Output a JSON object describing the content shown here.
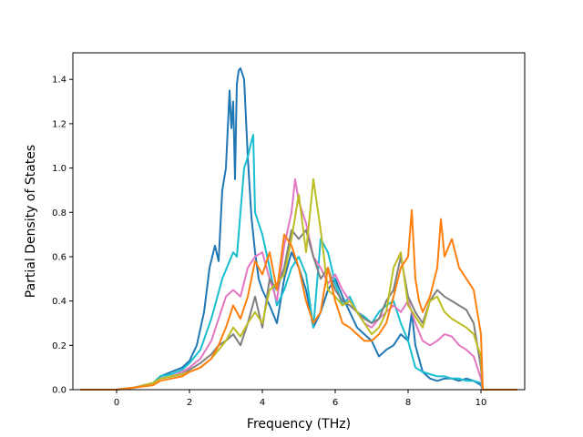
{
  "chart_data": {
    "type": "line",
    "title": "",
    "xlabel": "Frequency (THz)",
    "ylabel": "Partial Density of States",
    "xlim": [
      -1.2,
      11.2
    ],
    "ylim": [
      0,
      1.52
    ],
    "xticks": [
      0,
      2,
      4,
      6,
      8,
      10
    ],
    "yticks": [
      0.0,
      0.2,
      0.4,
      0.6,
      0.8,
      1.0,
      1.2,
      1.4
    ],
    "xtick_labels": [
      "0",
      "2",
      "4",
      "6",
      "8",
      "10"
    ],
    "ytick_labels": [
      "0.0",
      "0.2",
      "0.4",
      "0.6",
      "0.8",
      "1.0",
      "1.2",
      "1.4"
    ],
    "grid": false,
    "legend": false,
    "series": [
      {
        "color": "#1f77b4",
        "x": [
          -1.0,
          0.0,
          0.5,
          1.0,
          1.2,
          1.5,
          1.8,
          2.0,
          2.2,
          2.4,
          2.55,
          2.7,
          2.8,
          2.9,
          3.0,
          3.1,
          3.15,
          3.2,
          3.25,
          3.3,
          3.35,
          3.4,
          3.5,
          3.6,
          3.7,
          3.8,
          3.9,
          4.0,
          4.2,
          4.4,
          4.6,
          4.8,
          5.0,
          5.2,
          5.4,
          5.6,
          5.8,
          6.0,
          6.2,
          6.4,
          6.6,
          6.8,
          7.0,
          7.2,
          7.4,
          7.6,
          7.8,
          8.0,
          8.1,
          8.2,
          8.4,
          8.6,
          8.8,
          9.0,
          9.2,
          9.4,
          9.6,
          9.8,
          10.0,
          10.05,
          10.2,
          11.0
        ],
        "y": [
          0.0,
          0.0,
          0.01,
          0.03,
          0.06,
          0.08,
          0.1,
          0.13,
          0.2,
          0.35,
          0.55,
          0.65,
          0.58,
          0.9,
          1.0,
          1.35,
          1.18,
          1.3,
          0.95,
          1.38,
          1.44,
          1.45,
          1.4,
          1.05,
          0.78,
          0.62,
          0.5,
          0.45,
          0.38,
          0.3,
          0.5,
          0.62,
          0.55,
          0.45,
          0.28,
          0.35,
          0.45,
          0.5,
          0.42,
          0.35,
          0.28,
          0.25,
          0.22,
          0.15,
          0.18,
          0.2,
          0.25,
          0.22,
          0.35,
          0.2,
          0.08,
          0.05,
          0.04,
          0.05,
          0.05,
          0.04,
          0.05,
          0.04,
          0.02,
          0.0,
          0.0,
          0.0
        ]
      },
      {
        "color": "#17becf",
        "x": [
          -1.0,
          0.0,
          0.5,
          1.0,
          1.2,
          1.5,
          1.8,
          2.0,
          2.3,
          2.6,
          2.9,
          3.1,
          3.2,
          3.3,
          3.5,
          3.6,
          3.7,
          3.75,
          3.8,
          4.0,
          4.2,
          4.4,
          4.6,
          4.8,
          5.0,
          5.2,
          5.4,
          5.6,
          5.8,
          6.0,
          6.2,
          6.4,
          6.6,
          6.8,
          7.0,
          7.2,
          7.4,
          7.6,
          7.8,
          8.0,
          8.2,
          8.4,
          8.6,
          8.8,
          9.0,
          9.2,
          9.4,
          9.6,
          9.8,
          10.0,
          10.05,
          10.2,
          11.0
        ],
        "y": [
          0.0,
          0.0,
          0.01,
          0.03,
          0.06,
          0.07,
          0.09,
          0.12,
          0.18,
          0.32,
          0.5,
          0.58,
          0.62,
          0.6,
          1.0,
          1.05,
          1.12,
          1.15,
          0.8,
          0.7,
          0.55,
          0.38,
          0.45,
          0.55,
          0.6,
          0.52,
          0.28,
          0.68,
          0.62,
          0.48,
          0.38,
          0.42,
          0.35,
          0.33,
          0.3,
          0.35,
          0.38,
          0.4,
          0.3,
          0.22,
          0.1,
          0.08,
          0.07,
          0.06,
          0.06,
          0.05,
          0.05,
          0.04,
          0.04,
          0.03,
          0.0,
          0.0,
          0.0
        ]
      },
      {
        "color": "#e377c2",
        "x": [
          -1.0,
          0.0,
          0.5,
          1.0,
          1.2,
          1.5,
          1.8,
          2.0,
          2.3,
          2.6,
          2.8,
          3.0,
          3.2,
          3.4,
          3.6,
          3.8,
          4.0,
          4.2,
          4.4,
          4.6,
          4.8,
          4.9,
          5.0,
          5.2,
          5.4,
          5.6,
          5.8,
          6.0,
          6.2,
          6.4,
          6.6,
          6.8,
          7.0,
          7.2,
          7.4,
          7.6,
          7.8,
          8.0,
          8.2,
          8.4,
          8.6,
          8.8,
          9.0,
          9.2,
          9.4,
          9.6,
          9.8,
          10.0,
          10.05,
          10.2,
          11.0
        ],
        "y": [
          0.0,
          0.0,
          0.01,
          0.03,
          0.05,
          0.06,
          0.08,
          0.1,
          0.14,
          0.22,
          0.32,
          0.42,
          0.45,
          0.42,
          0.55,
          0.6,
          0.62,
          0.5,
          0.4,
          0.65,
          0.8,
          0.95,
          0.85,
          0.75,
          0.6,
          0.55,
          0.48,
          0.52,
          0.45,
          0.4,
          0.35,
          0.3,
          0.28,
          0.32,
          0.35,
          0.38,
          0.35,
          0.4,
          0.3,
          0.22,
          0.2,
          0.22,
          0.25,
          0.24,
          0.2,
          0.18,
          0.15,
          0.05,
          0.0,
          0.0,
          0.0
        ]
      },
      {
        "color": "#7f7f7f",
        "x": [
          -1.0,
          0.0,
          0.5,
          1.0,
          1.2,
          1.5,
          1.8,
          2.0,
          2.3,
          2.6,
          2.8,
          3.0,
          3.2,
          3.4,
          3.6,
          3.8,
          4.0,
          4.2,
          4.4,
          4.6,
          4.8,
          5.0,
          5.2,
          5.4,
          5.6,
          5.8,
          6.0,
          6.2,
          6.4,
          6.6,
          6.8,
          7.0,
          7.2,
          7.4,
          7.6,
          7.8,
          8.0,
          8.2,
          8.4,
          8.6,
          8.8,
          9.0,
          9.2,
          9.4,
          9.6,
          9.8,
          10.0,
          10.05,
          10.2,
          11.0
        ],
        "y": [
          0.0,
          0.0,
          0.01,
          0.03,
          0.05,
          0.06,
          0.07,
          0.09,
          0.12,
          0.16,
          0.2,
          0.22,
          0.25,
          0.2,
          0.3,
          0.42,
          0.28,
          0.5,
          0.45,
          0.55,
          0.72,
          0.68,
          0.72,
          0.6,
          0.5,
          0.55,
          0.45,
          0.4,
          0.38,
          0.35,
          0.32,
          0.3,
          0.32,
          0.4,
          0.45,
          0.6,
          0.42,
          0.35,
          0.3,
          0.4,
          0.45,
          0.42,
          0.4,
          0.38,
          0.36,
          0.3,
          0.1,
          0.0,
          0.0,
          0.0
        ]
      },
      {
        "color": "#bcbd22",
        "x": [
          -1.0,
          0.0,
          0.5,
          1.0,
          1.2,
          1.5,
          1.8,
          2.0,
          2.3,
          2.6,
          2.8,
          3.0,
          3.2,
          3.4,
          3.6,
          3.8,
          4.0,
          4.2,
          4.4,
          4.6,
          4.8,
          5.0,
          5.2,
          5.4,
          5.6,
          5.8,
          6.0,
          6.2,
          6.4,
          6.6,
          6.8,
          7.0,
          7.2,
          7.4,
          7.6,
          7.8,
          8.0,
          8.2,
          8.4,
          8.6,
          8.8,
          9.0,
          9.2,
          9.4,
          9.6,
          9.8,
          10.0,
          10.05,
          10.2,
          11.0
        ],
        "y": [
          0.0,
          0.0,
          0.01,
          0.03,
          0.05,
          0.06,
          0.07,
          0.08,
          0.1,
          0.14,
          0.18,
          0.22,
          0.28,
          0.24,
          0.3,
          0.35,
          0.3,
          0.45,
          0.48,
          0.52,
          0.68,
          0.88,
          0.62,
          0.95,
          0.72,
          0.45,
          0.42,
          0.38,
          0.4,
          0.35,
          0.3,
          0.25,
          0.28,
          0.35,
          0.55,
          0.62,
          0.38,
          0.33,
          0.28,
          0.4,
          0.42,
          0.35,
          0.32,
          0.3,
          0.28,
          0.25,
          0.15,
          0.0,
          0.0,
          0.0
        ]
      },
      {
        "color": "#ff7f0e",
        "x": [
          -1.0,
          0.0,
          0.5,
          1.0,
          1.2,
          1.5,
          1.8,
          2.0,
          2.3,
          2.6,
          2.8,
          3.0,
          3.2,
          3.4,
          3.6,
          3.8,
          4.0,
          4.2,
          4.4,
          4.6,
          4.8,
          5.0,
          5.2,
          5.4,
          5.6,
          5.8,
          6.0,
          6.2,
          6.4,
          6.6,
          6.8,
          7.0,
          7.2,
          7.4,
          7.6,
          7.8,
          8.0,
          8.1,
          8.2,
          8.3,
          8.4,
          8.6,
          8.8,
          8.9,
          9.0,
          9.2,
          9.4,
          9.6,
          9.8,
          10.0,
          10.05,
          10.2,
          11.0
        ],
        "y": [
          0.0,
          0.0,
          0.01,
          0.02,
          0.04,
          0.05,
          0.06,
          0.08,
          0.1,
          0.14,
          0.2,
          0.28,
          0.38,
          0.32,
          0.42,
          0.58,
          0.52,
          0.62,
          0.45,
          0.7,
          0.65,
          0.55,
          0.4,
          0.3,
          0.35,
          0.55,
          0.4,
          0.3,
          0.28,
          0.25,
          0.22,
          0.22,
          0.25,
          0.3,
          0.42,
          0.55,
          0.6,
          0.81,
          0.5,
          0.4,
          0.35,
          0.42,
          0.55,
          0.77,
          0.6,
          0.68,
          0.55,
          0.5,
          0.45,
          0.25,
          0.0,
          0.0,
          0.0
        ]
      }
    ]
  }
}
